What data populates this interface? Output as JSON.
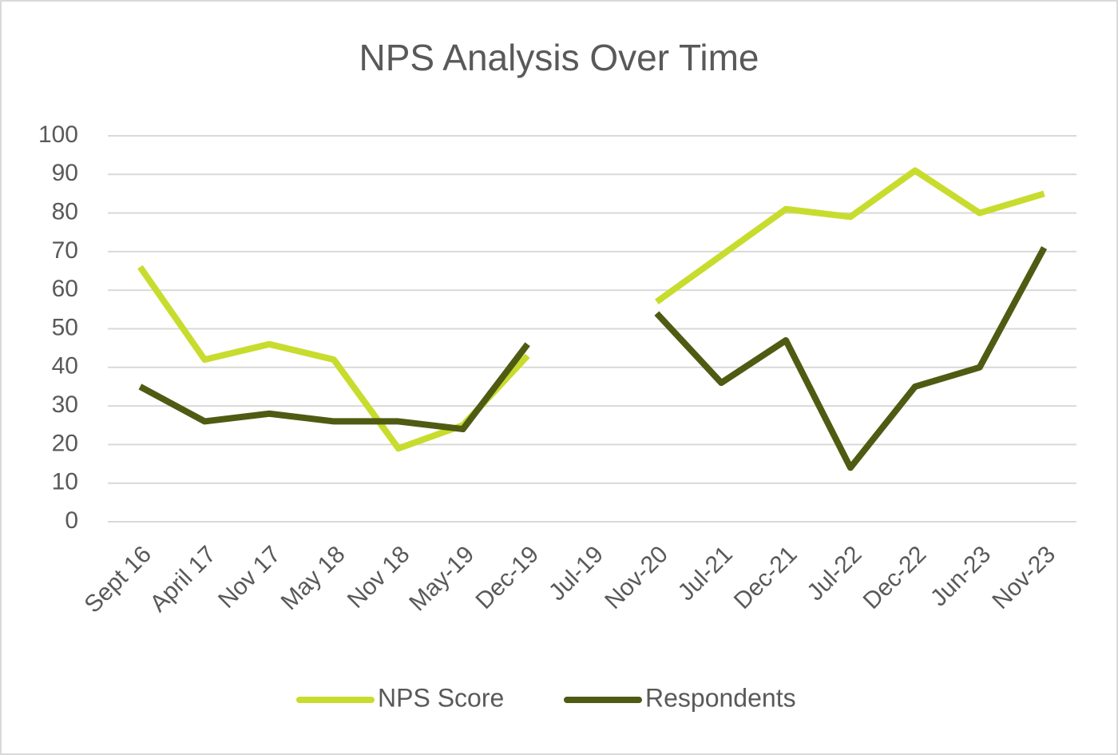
{
  "chart_data": {
    "type": "line",
    "title": "NPS Analysis Over Time",
    "categories": [
      "Sept 16",
      "April 17",
      "Nov 17",
      "May 18",
      "Nov 18",
      "May-19",
      "Dec-19",
      "Jul-19",
      "Nov-20",
      "Jul-21",
      "Dec-21",
      "Jul-22",
      "Dec-22",
      "Jun-23",
      "Nov-23"
    ],
    "series": [
      {
        "name": "NPS Score",
        "color": "#c8dc2e",
        "values": [
          66,
          42,
          46,
          42,
          19,
          25,
          43,
          null,
          57,
          69,
          81,
          79,
          91,
          80,
          85
        ]
      },
      {
        "name": "Respondents",
        "color": "#4f5b12",
        "values": [
          35,
          26,
          28,
          26,
          26,
          24,
          46,
          null,
          54,
          36,
          47,
          14,
          35,
          40,
          71
        ]
      }
    ],
    "ylim": [
      0,
      100
    ],
    "yticks": [
      0,
      10,
      20,
      30,
      40,
      50,
      60,
      70,
      80,
      90,
      100
    ],
    "grid": true,
    "legend": "bottom"
  }
}
